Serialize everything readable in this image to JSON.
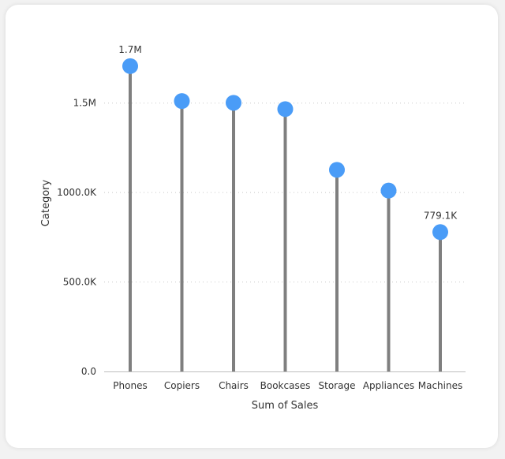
{
  "chart_data": {
    "type": "lollipop",
    "categories": [
      "Phones",
      "Copiers",
      "Chairs",
      "Bookcases",
      "Storage",
      "Appliances",
      "Machines"
    ],
    "values": [
      1706824,
      1511500,
      1501682,
      1466572,
      1127086,
      1011064,
      779068
    ],
    "data_labels": [
      {
        "index": 0,
        "text": "1.7M"
      },
      {
        "index": 6,
        "text": "779.1K"
      }
    ],
    "xlabel": "Sum of Sales",
    "ylabel": "Category",
    "ylim": [
      0,
      1900000
    ],
    "yticks": [
      {
        "value": 0,
        "label": "0.0"
      },
      {
        "value": 500000,
        "label": "500.0K"
      },
      {
        "value": 1000000,
        "label": "1000.0K"
      },
      {
        "value": 1500000,
        "label": "1.5M"
      }
    ],
    "grid": true,
    "colors": {
      "stem": "#7f7f7f",
      "marker": "#4a9cf7",
      "grid": "#c8c8c8",
      "axis": "#bdbdbd"
    }
  }
}
